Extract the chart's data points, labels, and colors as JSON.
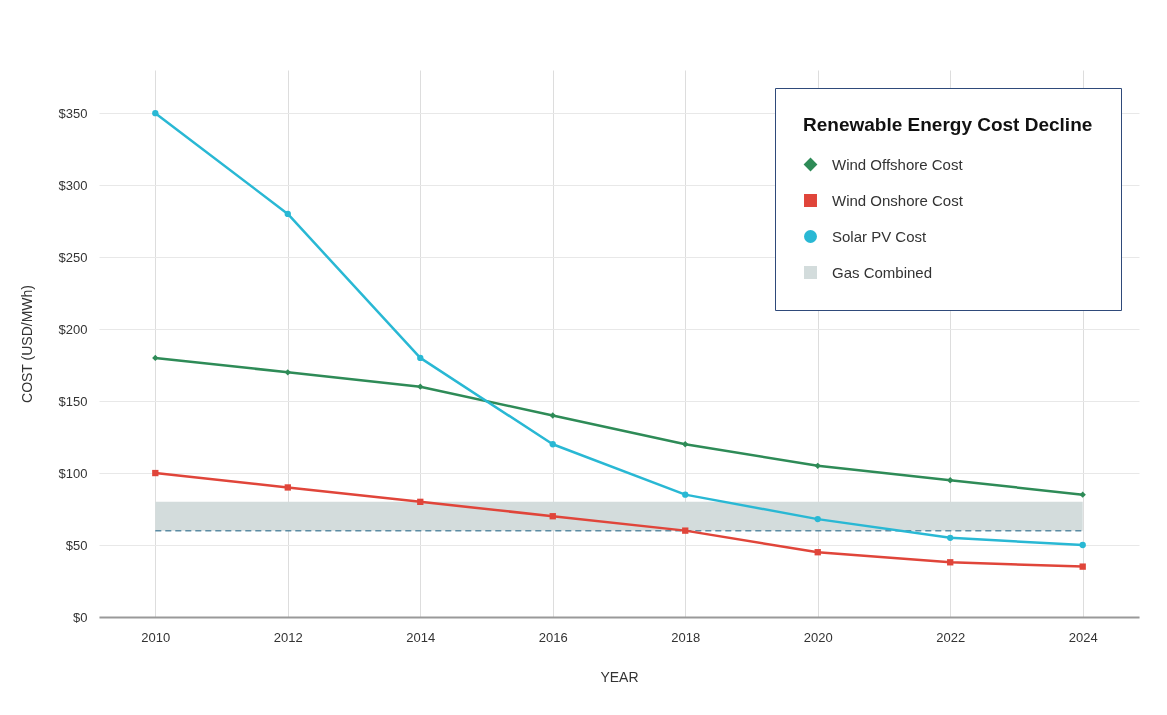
{
  "chart_data": {
    "type": "line",
    "xlabel": "YEAR",
    "ylabel": "COST (USD/MWh)",
    "legend_title": "Renewable Energy Cost Decline",
    "x": [
      2010,
      2012,
      2014,
      2016,
      2018,
      2020,
      2022,
      2024
    ],
    "series": [
      {
        "name": "Wind Offshore Cost",
        "color": "#2e8b57",
        "marker": "diamond",
        "values": [
          180,
          170,
          160,
          140,
          120,
          105,
          95,
          85
        ]
      },
      {
        "name": "Wind Onshore Cost",
        "color": "#e0453a",
        "marker": "square",
        "values": [
          100,
          90,
          80,
          70,
          60,
          45,
          38,
          35
        ]
      },
      {
        "name": "Solar PV Cost",
        "color": "#29b8d4",
        "marker": "circle",
        "values": [
          350,
          280,
          180,
          120,
          85,
          68,
          55,
          50
        ]
      }
    ],
    "bands": [
      {
        "axis": "y",
        "from": 60,
        "to": 80,
        "label": "Gas Combined",
        "color": "#d3dcdc"
      }
    ],
    "ref_lines": [
      {
        "axis": "y",
        "value": 60,
        "color": "#5b8ba3",
        "line_style": "dashed"
      }
    ],
    "xlim": [
      2009.15,
      2024.85
    ],
    "ylim": [
      0,
      380
    ],
    "xticks": [
      2010,
      2012,
      2014,
      2016,
      2018,
      2020,
      2022,
      2024
    ],
    "yticks": [
      {
        "value": 0,
        "label": "$0"
      },
      {
        "value": 50,
        "label": "$50"
      },
      {
        "value": 100,
        "label": "$100"
      },
      {
        "value": 150,
        "label": "$150"
      },
      {
        "value": 200,
        "label": "$200"
      },
      {
        "value": 250,
        "label": "$250"
      },
      {
        "value": 300,
        "label": "$300"
      },
      {
        "value": 350,
        "label": "$350"
      }
    ],
    "grid": true,
    "legend": "top right",
    "line_style": "solid"
  }
}
